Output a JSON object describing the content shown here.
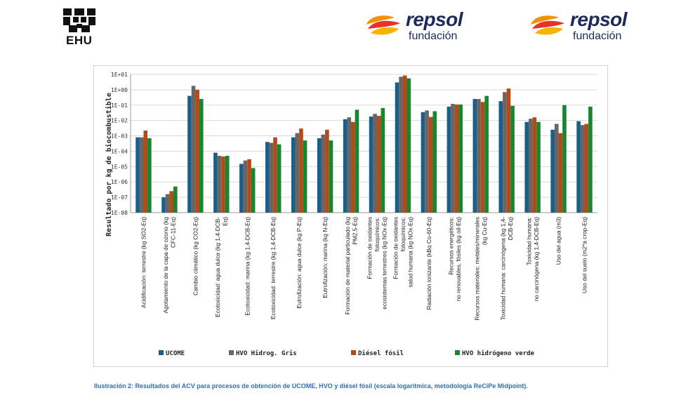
{
  "logos": {
    "ehu": "EHU",
    "repsol_brand": "repsol",
    "repsol_sub": "fundación"
  },
  "caption": "Ilustración 2: Resultados del ACV para procesos de obtención de UCOME, HVO y diésel fósil (escala logarítmica, metodología ReCiPe Midpoint).",
  "chart_data": {
    "type": "bar",
    "scale": "log",
    "ylabel": "Resultado por kg de biocombustible",
    "ylim": [
      1e-08,
      10
    ],
    "yticks": [
      "1E-08",
      "1E-07",
      "1E-06",
      "1E-05",
      "1E-04",
      "1E-03",
      "1E-02",
      "1E-01",
      "1E+00",
      "1E+01"
    ],
    "grid": true,
    "legend_position": "bottom",
    "categories": [
      [
        "Acidificación: terrestre (kg SO2-Eq)"
      ],
      [
        "Agotamiento de la capa de ozono (kg",
        "CFC-11-Eq)"
      ],
      [
        "Cambio climático (kg CO2-Eq)"
      ],
      [
        "Ecotoxicidad: agua dulce (kg 1,4-DCB-",
        "Eq)"
      ],
      [
        "Ecotoxicidad: marina (kg 1,4-DCB-Eq)"
      ],
      [
        "Ecotoxicidad: terrestre (kg 1,4-DCB-Eq)"
      ],
      [
        "Eutrofización: agua dulce (kg P-Eq)"
      ],
      [
        "Eutrofización: marina (kg N-Eq)"
      ],
      [
        "Formación de material particulado (kg",
        "PM2.5-Eq)"
      ],
      [
        "Formación de oxidantes",
        "fotoquímicos:",
        "ecosistemas terrestres (kg NOx-Eq)"
      ],
      [
        "Formación de oxidantes",
        "fotoquímicos:",
        "salud humana (kg NOx-Eq)"
      ],
      [
        "Radiación ionizante (kBq Co-60-Eq)"
      ],
      [
        "Recursos energéticos:",
        "no renovables, fósiles (kg oil-Eq)"
      ],
      [
        "Recursos materiales: metales/minerales",
        "(kg Cu-Eq)"
      ],
      [
        "Toxicidad humana: carcinógena (kg 1,4-",
        "DCB-Eq)"
      ],
      [
        "Toxicidad humana:",
        "no carcinógena (kg 1,4-DCB-Eq)"
      ],
      [
        "Uso del agua (m3)"
      ],
      [
        "Uso del suelo (m2*a crop-Eq)"
      ]
    ],
    "series": [
      {
        "name": "UCOME",
        "color": "#1b5e8a",
        "values": [
          0.0008,
          1e-07,
          0.4,
          8e-05,
          1.5e-05,
          0.0004,
          0.0008,
          0.0007,
          0.012,
          0.018,
          3.0,
          0.035,
          0.08,
          0.25,
          0.18,
          0.008,
          0.0025,
          0.009
        ]
      },
      {
        "name": "HVO Hidrog. Gris",
        "color": "#666666",
        "values": [
          0.0008,
          1.6e-07,
          1.8,
          5e-05,
          2.5e-05,
          0.00035,
          0.0015,
          0.0012,
          0.016,
          0.027,
          7.0,
          0.045,
          0.12,
          0.25,
          0.7,
          0.013,
          0.006,
          0.005
        ]
      },
      {
        "name": "Diésel fósil",
        "color": "#b34a18",
        "values": [
          0.0022,
          2.5e-07,
          1.0,
          4.5e-05,
          3e-05,
          0.0008,
          0.003,
          0.0025,
          0.008,
          0.02,
          8.5,
          0.017,
          0.11,
          0.16,
          1.2,
          0.016,
          0.0015,
          0.006
        ]
      },
      {
        "name": "HVO hidrógeno verde",
        "color": "#17862f",
        "values": [
          0.0007,
          5e-07,
          0.25,
          5e-05,
          8e-06,
          0.00028,
          0.0005,
          0.0005,
          0.05,
          0.065,
          5.5,
          0.04,
          0.11,
          0.4,
          0.09,
          0.008,
          0.1,
          0.08
        ]
      }
    ]
  }
}
